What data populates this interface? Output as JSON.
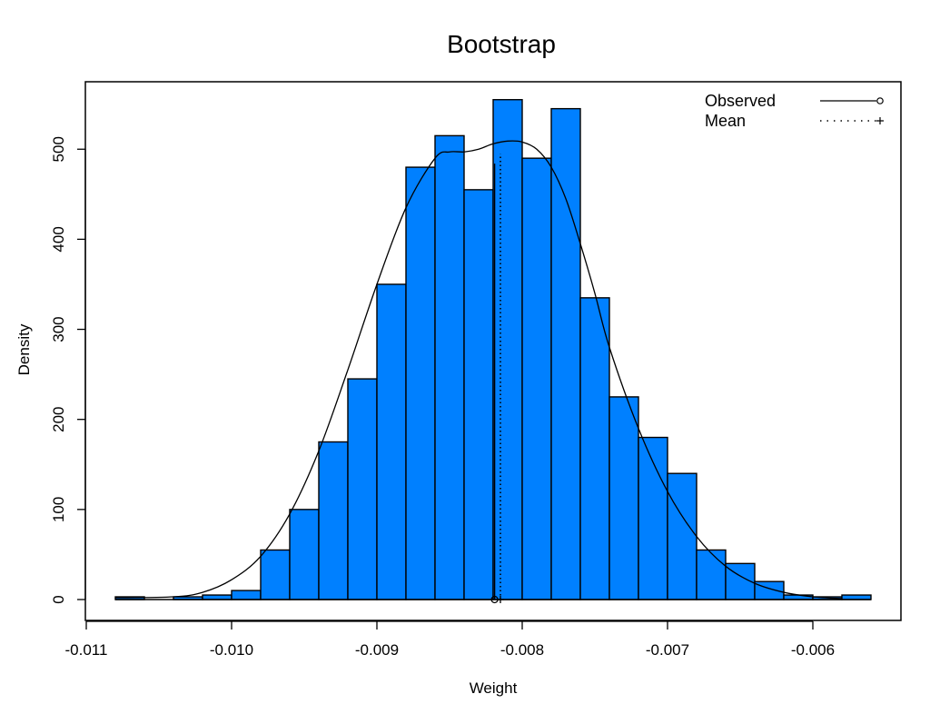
{
  "chart_data": {
    "type": "histogram",
    "title": "Bootstrap",
    "xlabel": "Weight",
    "ylabel": "Density",
    "xlim": [
      -0.011,
      -0.0055
    ],
    "ylim": [
      0,
      550
    ],
    "x_ticks": [
      -0.011,
      -0.01,
      -0.009,
      -0.008,
      -0.007,
      -0.006
    ],
    "x_tick_labels": [
      "-0.011",
      "-0.010",
      "-0.009",
      "-0.008",
      "-0.007",
      "-0.006"
    ],
    "y_ticks": [
      0,
      100,
      200,
      300,
      400,
      500
    ],
    "y_tick_labels": [
      "0",
      "100",
      "200",
      "300",
      "400",
      "500"
    ],
    "bins": [
      {
        "x0": -0.0108,
        "x1": -0.0106,
        "density": 3
      },
      {
        "x0": -0.0106,
        "x1": -0.0104,
        "density": 0
      },
      {
        "x0": -0.0104,
        "x1": -0.0102,
        "density": 3
      },
      {
        "x0": -0.0102,
        "x1": -0.01,
        "density": 5
      },
      {
        "x0": -0.01,
        "x1": -0.0098,
        "density": 10
      },
      {
        "x0": -0.0098,
        "x1": -0.0096,
        "density": 55
      },
      {
        "x0": -0.0096,
        "x1": -0.0094,
        "density": 100
      },
      {
        "x0": -0.0094,
        "x1": -0.0092,
        "density": 175
      },
      {
        "x0": -0.0092,
        "x1": -0.009,
        "density": 245
      },
      {
        "x0": -0.009,
        "x1": -0.0088,
        "density": 350
      },
      {
        "x0": -0.0088,
        "x1": -0.0086,
        "density": 480
      },
      {
        "x0": -0.0086,
        "x1": -0.0084,
        "density": 515
      },
      {
        "x0": -0.0084,
        "x1": -0.0082,
        "density": 455
      },
      {
        "x0": -0.0082,
        "x1": -0.008,
        "density": 555
      },
      {
        "x0": -0.008,
        "x1": -0.0078,
        "density": 490
      },
      {
        "x0": -0.0078,
        "x1": -0.0076,
        "density": 545
      },
      {
        "x0": -0.0076,
        "x1": -0.0074,
        "density": 335
      },
      {
        "x0": -0.0074,
        "x1": -0.0072,
        "density": 225
      },
      {
        "x0": -0.0072,
        "x1": -0.007,
        "density": 180
      },
      {
        "x0": -0.007,
        "x1": -0.0068,
        "density": 140
      },
      {
        "x0": -0.0068,
        "x1": -0.0066,
        "density": 55
      },
      {
        "x0": -0.0066,
        "x1": -0.0064,
        "density": 40
      },
      {
        "x0": -0.0064,
        "x1": -0.0062,
        "density": 20
      },
      {
        "x0": -0.0062,
        "x1": -0.006,
        "density": 5
      },
      {
        "x0": -0.006,
        "x1": -0.0058,
        "density": 3
      },
      {
        "x0": -0.0058,
        "x1": -0.0056,
        "density": 5
      }
    ],
    "density_curve": {
      "x": [
        -0.0108,
        -0.0104,
        -0.0102,
        -0.01,
        -0.0098,
        -0.0096,
        -0.0094,
        -0.0092,
        -0.009,
        -0.0088,
        -0.0086,
        -0.0085,
        -0.0084,
        -0.0083,
        -0.0082,
        -0.0081,
        -0.008,
        -0.0079,
        -0.0078,
        -0.0077,
        -0.0076,
        -0.0075,
        -0.0074,
        -0.0072,
        -0.007,
        -0.0068,
        -0.0066,
        -0.0064,
        -0.0062,
        -0.006,
        -0.0058
      ],
      "y": [
        2,
        3,
        8,
        22,
        48,
        95,
        165,
        255,
        350,
        435,
        490,
        497,
        497,
        500,
        506,
        509,
        508,
        500,
        480,
        445,
        395,
        340,
        280,
        190,
        120,
        70,
        37,
        18,
        8,
        3,
        1
      ]
    },
    "observed": -0.00819,
    "mean": -0.00815,
    "legend": {
      "position": "top-right",
      "entries": [
        {
          "label": "Observed",
          "line_style": "solid",
          "marker": "circle"
        },
        {
          "label": "Mean",
          "line_style": "dotted",
          "marker": "plus"
        }
      ]
    },
    "bar_color": "#0080ff",
    "line_color": "#000000"
  }
}
